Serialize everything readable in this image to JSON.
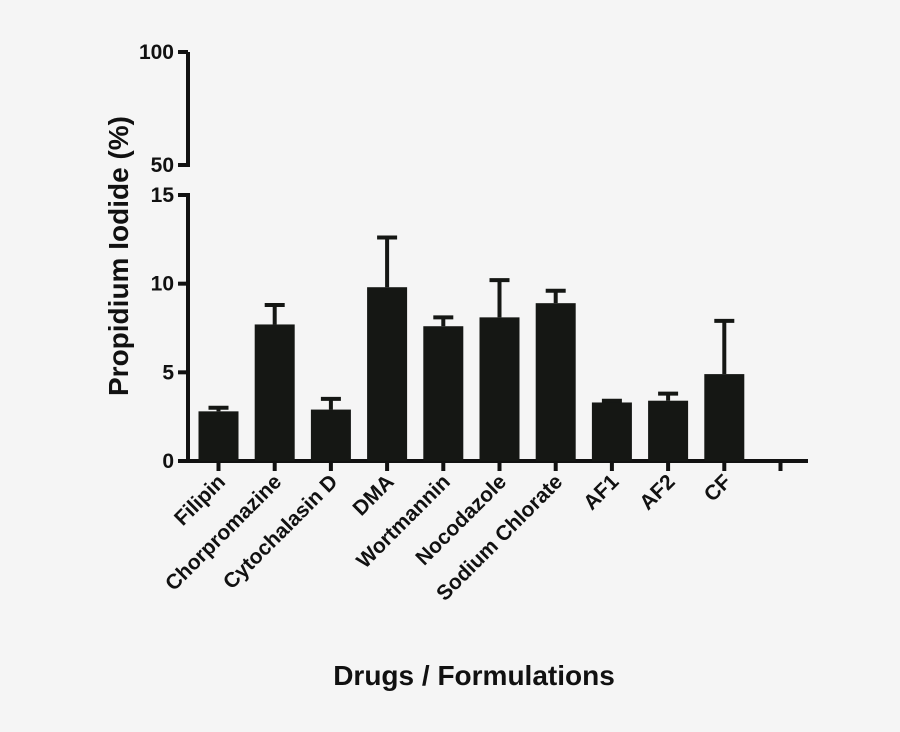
{
  "chart_data": {
    "type": "bar",
    "xlabel": "Drugs / Formulations",
    "ylabel": "Propidium Iodide (%)",
    "y_axis_break": {
      "lower_range": [
        0,
        15
      ],
      "upper_range": [
        50,
        100
      ]
    },
    "upper_ticks": [
      "50",
      "100"
    ],
    "lower_ticks": [
      "0",
      "5",
      "10",
      "15"
    ],
    "categories": [
      "Filipin",
      "Chorpromazine",
      "Cytochalasin D",
      "DMA",
      "Wortmannin",
      "Nocodazole",
      "Sodium Chlorate",
      "AF1",
      "AF2",
      "CF"
    ],
    "values": [
      2.8,
      7.7,
      2.9,
      9.8,
      7.6,
      8.1,
      8.9,
      3.3,
      3.4,
      4.9
    ],
    "error": [
      0.2,
      1.1,
      0.6,
      2.8,
      0.5,
      2.1,
      0.7,
      0.1,
      0.4,
      3.0
    ],
    "grid": false,
    "legend": "none",
    "bar_color": "#151714"
  }
}
